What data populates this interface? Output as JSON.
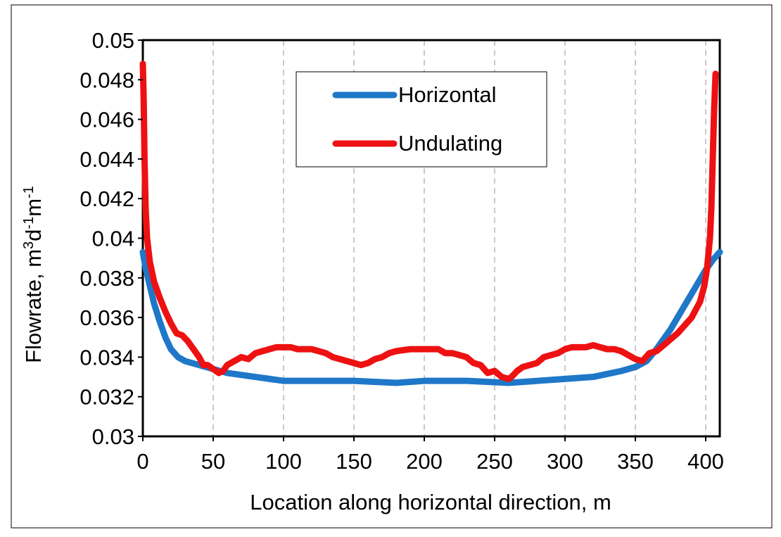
{
  "chart_data": {
    "type": "line",
    "xlabel": "Location along horizontal direction, m",
    "ylabel": "Flowrate, m3d-1m-1",
    "ylabel_parts": {
      "prefix": "Flowrate, m",
      "sup1": "3",
      "mid1": "d",
      "sup2": "-1",
      "mid2": "m",
      "sup3": "-1"
    },
    "xlim": [
      0,
      410
    ],
    "ylim": [
      0.03,
      0.05
    ],
    "x_ticks": [
      0,
      50,
      100,
      150,
      200,
      250,
      300,
      350,
      400
    ],
    "x_tick_labels": [
      "0",
      "50",
      "100",
      "150",
      "200",
      "250",
      "300",
      "350",
      "400"
    ],
    "y_ticks": [
      0.03,
      0.032,
      0.034,
      0.036,
      0.038,
      0.04,
      0.042,
      0.044,
      0.046,
      0.048,
      0.05
    ],
    "y_tick_labels": [
      "0.03",
      "0.032",
      "0.034",
      "0.036",
      "0.038",
      "0.04",
      "0.042",
      "0.044",
      "0.046",
      "0.048",
      "0.05"
    ],
    "grid": {
      "vertical": true,
      "horizontal": false,
      "style": "dashed"
    },
    "legend_position": "top-center",
    "series": [
      {
        "name": "Horizontal",
        "color": "#1f77c8",
        "points": [
          [
            0,
            0.0393
          ],
          [
            2,
            0.0385
          ],
          [
            5,
            0.0376
          ],
          [
            8,
            0.0367
          ],
          [
            12,
            0.0358
          ],
          [
            16,
            0.035
          ],
          [
            20,
            0.0344
          ],
          [
            25,
            0.034
          ],
          [
            30,
            0.0338
          ],
          [
            40,
            0.0336
          ],
          [
            50,
            0.0334
          ],
          [
            60,
            0.0332
          ],
          [
            80,
            0.033
          ],
          [
            100,
            0.0328
          ],
          [
            120,
            0.0328
          ],
          [
            150,
            0.0328
          ],
          [
            180,
            0.0327
          ],
          [
            200,
            0.0328
          ],
          [
            230,
            0.0328
          ],
          [
            260,
            0.0327
          ],
          [
            280,
            0.0328
          ],
          [
            300,
            0.0329
          ],
          [
            320,
            0.033
          ],
          [
            340,
            0.0333
          ],
          [
            350,
            0.0335
          ],
          [
            358,
            0.0338
          ],
          [
            365,
            0.0344
          ],
          [
            375,
            0.0354
          ],
          [
            385,
            0.0366
          ],
          [
            395,
            0.0378
          ],
          [
            400,
            0.0384
          ],
          [
            405,
            0.0389
          ],
          [
            410,
            0.0393
          ]
        ]
      },
      {
        "name": "Undulating",
        "color": "#ee1111",
        "points": [
          [
            0,
            0.0488
          ],
          [
            0.6,
            0.047
          ],
          [
            1.2,
            0.044
          ],
          [
            2,
            0.0415
          ],
          [
            3,
            0.04
          ],
          [
            5,
            0.0388
          ],
          [
            8,
            0.0378
          ],
          [
            12,
            0.037
          ],
          [
            16,
            0.0363
          ],
          [
            20,
            0.0357
          ],
          [
            24,
            0.0352
          ],
          [
            28,
            0.0351
          ],
          [
            32,
            0.0348
          ],
          [
            36,
            0.0344
          ],
          [
            40,
            0.034
          ],
          [
            43,
            0.0336
          ],
          [
            46,
            0.0336
          ],
          [
            50,
            0.0334
          ],
          [
            54,
            0.0332
          ],
          [
            57,
            0.0333
          ],
          [
            60,
            0.0336
          ],
          [
            65,
            0.0338
          ],
          [
            70,
            0.034
          ],
          [
            75,
            0.0339
          ],
          [
            80,
            0.0342
          ],
          [
            85,
            0.0343
          ],
          [
            90,
            0.0344
          ],
          [
            95,
            0.0345
          ],
          [
            100,
            0.0345
          ],
          [
            105,
            0.0345
          ],
          [
            110,
            0.0344
          ],
          [
            115,
            0.0344
          ],
          [
            120,
            0.0344
          ],
          [
            125,
            0.0343
          ],
          [
            130,
            0.0342
          ],
          [
            135,
            0.034
          ],
          [
            140,
            0.0339
          ],
          [
            145,
            0.0338
          ],
          [
            150,
            0.0337
          ],
          [
            155,
            0.0336
          ],
          [
            160,
            0.0337
          ],
          [
            165,
            0.0339
          ],
          [
            170,
            0.034
          ],
          [
            175,
            0.0342
          ],
          [
            180,
            0.0343
          ],
          [
            190,
            0.0344
          ],
          [
            200,
            0.0344
          ],
          [
            205,
            0.0344
          ],
          [
            210,
            0.0344
          ],
          [
            215,
            0.0342
          ],
          [
            220,
            0.0342
          ],
          [
            225,
            0.0341
          ],
          [
            230,
            0.034
          ],
          [
            235,
            0.0337
          ],
          [
            240,
            0.0336
          ],
          [
            245,
            0.0332
          ],
          [
            250,
            0.0333
          ],
          [
            255,
            0.033
          ],
          [
            260,
            0.0329
          ],
          [
            262,
            0.033
          ],
          [
            266,
            0.0333
          ],
          [
            270,
            0.0335
          ],
          [
            275,
            0.0336
          ],
          [
            280,
            0.0337
          ],
          [
            285,
            0.034
          ],
          [
            290,
            0.0341
          ],
          [
            295,
            0.0342
          ],
          [
            300,
            0.0344
          ],
          [
            305,
            0.0345
          ],
          [
            310,
            0.0345
          ],
          [
            315,
            0.0345
          ],
          [
            320,
            0.0346
          ],
          [
            325,
            0.0345
          ],
          [
            330,
            0.0344
          ],
          [
            335,
            0.0344
          ],
          [
            340,
            0.0343
          ],
          [
            345,
            0.0341
          ],
          [
            350,
            0.0339
          ],
          [
            355,
            0.0338
          ],
          [
            360,
            0.0342
          ],
          [
            365,
            0.0343
          ],
          [
            370,
            0.0346
          ],
          [
            375,
            0.0349
          ],
          [
            380,
            0.0352
          ],
          [
            385,
            0.0356
          ],
          [
            390,
            0.036
          ],
          [
            393,
            0.0364
          ],
          [
            396,
            0.0368
          ],
          [
            399,
            0.0376
          ],
          [
            401,
            0.0385
          ],
          [
            403,
            0.04
          ],
          [
            404,
            0.0415
          ],
          [
            405,
            0.044
          ],
          [
            406,
            0.0465
          ],
          [
            407,
            0.0483
          ]
        ]
      }
    ]
  }
}
